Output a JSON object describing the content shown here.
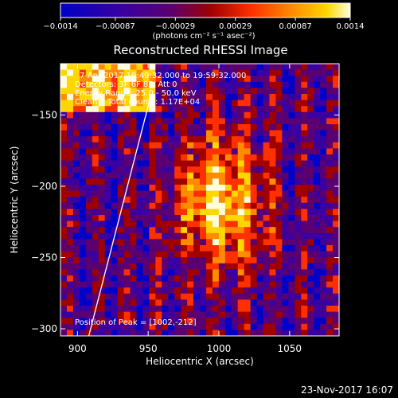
{
  "chart_data": {
    "type": "heatmap",
    "title": "Reconstructed RHESSI Image",
    "xlabel": "Heliocentric X (arcsec)",
    "ylabel": "Heliocentric Y (arcsec)",
    "xlim": [
      888,
      1085
    ],
    "ylim": [
      -305,
      -114
    ],
    "x_ticks": [
      900,
      950,
      1000,
      1050
    ],
    "y_ticks": [
      -150,
      -200,
      -250,
      -300
    ],
    "colorbar": {
      "min": -0.0014,
      "max": 0.0014,
      "ticks": [
        "−0.0014",
        "−0.00087",
        "−0.00029",
        "0.00029",
        "0.00087",
        "0.0014"
      ],
      "tick_values": [
        -0.0014,
        -0.00087,
        -0.00029,
        0.00029,
        0.00087,
        0.0014
      ],
      "units": "(photons cm⁻² s⁻¹ asec⁻²)",
      "colors": [
        "#0000c8",
        "#3a00a0",
        "#5a0070",
        "#a00000",
        "#ff3000",
        "#ff8c00",
        "#ffd700",
        "#ffffe0"
      ]
    },
    "annotations": [
      "7-Apr-2017 19:49:32.000 to 19:59:32.000",
      "Detectors: 3F 6F 8F, Att 0",
      "Energy Range: 25.0 - 50.0 keV",
      "Clean    Total counts: 1.17E+04"
    ],
    "peak_label": "Position of Peak = [1002,-212]",
    "peak": {
      "x": 1002,
      "y": -212
    },
    "limb_line": [
      [
        908,
        -305
      ],
      [
        952,
        -136
      ]
    ],
    "grid": false,
    "legend": "none"
  },
  "footer": {
    "timestamp": "23-Nov-2017 16:07"
  }
}
